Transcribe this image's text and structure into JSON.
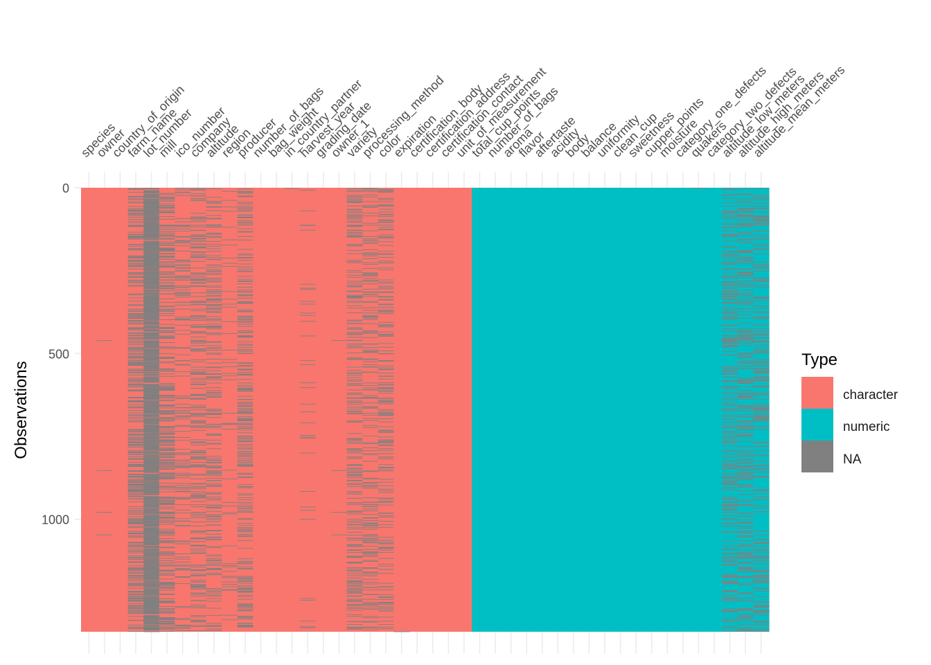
{
  "chart_data": {
    "type": "heatmap",
    "title": "",
    "ylabel": "Observations",
    "ylim": [
      0,
      1339
    ],
    "y_ticks": [
      0,
      500,
      1000
    ],
    "y_tick_labels": [
      "0",
      "500",
      "1000"
    ],
    "y_reversed": true,
    "n_observations": 1339,
    "columns": [
      {
        "name": "species",
        "type": "character",
        "na_rows": []
      },
      {
        "name": "owner",
        "type": "character",
        "na_rows": [
          461,
          853,
          979,
          1047
        ]
      },
      {
        "name": "country_of_origin",
        "type": "character",
        "na_rows": []
      },
      {
        "name": "farm_name",
        "type": "character",
        "na_fraction": 0.27
      },
      {
        "name": "lot_number",
        "type": "character",
        "na_fraction": 0.79
      },
      {
        "name": "mill",
        "type": "character",
        "na_fraction": 0.24
      },
      {
        "name": "ico_number",
        "type": "character",
        "na_fraction": 0.11
      },
      {
        "name": "company",
        "type": "character",
        "na_fraction": 0.16
      },
      {
        "name": "altitude",
        "type": "character",
        "na_fraction": 0.17
      },
      {
        "name": "region",
        "type": "character",
        "na_fraction": 0.04
      },
      {
        "name": "producer",
        "type": "character",
        "na_fraction": 0.17
      },
      {
        "name": "number_of_bags",
        "type": "character",
        "na_rows": []
      },
      {
        "name": "bag_weight",
        "type": "character",
        "na_rows": []
      },
      {
        "name": "in_country_partner",
        "type": "character",
        "na_rows": [
          2
        ]
      },
      {
        "name": "harvest_year",
        "type": "character",
        "na_fraction": 0.035
      },
      {
        "name": "grading_date",
        "type": "character",
        "na_rows": []
      },
      {
        "name": "owner_1",
        "type": "character",
        "na_rows": [
          461,
          853,
          979,
          1047
        ]
      },
      {
        "name": "variety",
        "type": "character",
        "na_fraction": 0.17
      },
      {
        "name": "processing_method",
        "type": "character",
        "na_fraction": 0.13
      },
      {
        "name": "color",
        "type": "character",
        "na_fraction": 0.16
      },
      {
        "name": "expiration",
        "type": "character",
        "na_rows": [
          1339
        ]
      },
      {
        "name": "certification_body",
        "type": "character",
        "na_rows": []
      },
      {
        "name": "certification_address",
        "type": "character",
        "na_rows": []
      },
      {
        "name": "certification_contact",
        "type": "character",
        "na_rows": []
      },
      {
        "name": "unit_of_measurement",
        "type": "character",
        "na_rows": []
      },
      {
        "name": "total_cup_points",
        "type": "numeric",
        "na_rows": []
      },
      {
        "name": "number_of_bags",
        "type": "numeric",
        "na_rows": []
      },
      {
        "name": "aroma",
        "type": "numeric",
        "na_rows": []
      },
      {
        "name": "flavor",
        "type": "numeric",
        "na_rows": []
      },
      {
        "name": "aftertaste",
        "type": "numeric",
        "na_rows": []
      },
      {
        "name": "acidity",
        "type": "numeric",
        "na_rows": []
      },
      {
        "name": "body",
        "type": "numeric",
        "na_rows": []
      },
      {
        "name": "balance",
        "type": "numeric",
        "na_rows": []
      },
      {
        "name": "uniformity",
        "type": "numeric",
        "na_rows": []
      },
      {
        "name": "clean_cup",
        "type": "numeric",
        "na_rows": []
      },
      {
        "name": "sweetness",
        "type": "numeric",
        "na_rows": []
      },
      {
        "name": "cupper_points",
        "type": "numeric",
        "na_rows": []
      },
      {
        "name": "moisture",
        "type": "numeric",
        "na_rows": []
      },
      {
        "name": "category_one_defects",
        "type": "numeric",
        "na_rows": []
      },
      {
        "name": "quakers",
        "type": "numeric",
        "na_rows": [
          1
        ]
      },
      {
        "name": "category_two_defects",
        "type": "numeric",
        "na_rows": []
      },
      {
        "name": "altitude_low_meters",
        "type": "numeric",
        "na_fraction": 0.17
      },
      {
        "name": "altitude_high_meters",
        "type": "numeric",
        "na_fraction": 0.17
      },
      {
        "name": "altitude_mean_meters",
        "type": "numeric",
        "na_fraction": 0.17
      }
    ],
    "legend": {
      "title": "Type",
      "placement": "right",
      "items": [
        {
          "label": "character",
          "color": "#F8766D"
        },
        {
          "label": "numeric",
          "color": "#00BFC4"
        },
        {
          "label": "NA",
          "color": "#808080"
        }
      ]
    },
    "grid": true
  }
}
